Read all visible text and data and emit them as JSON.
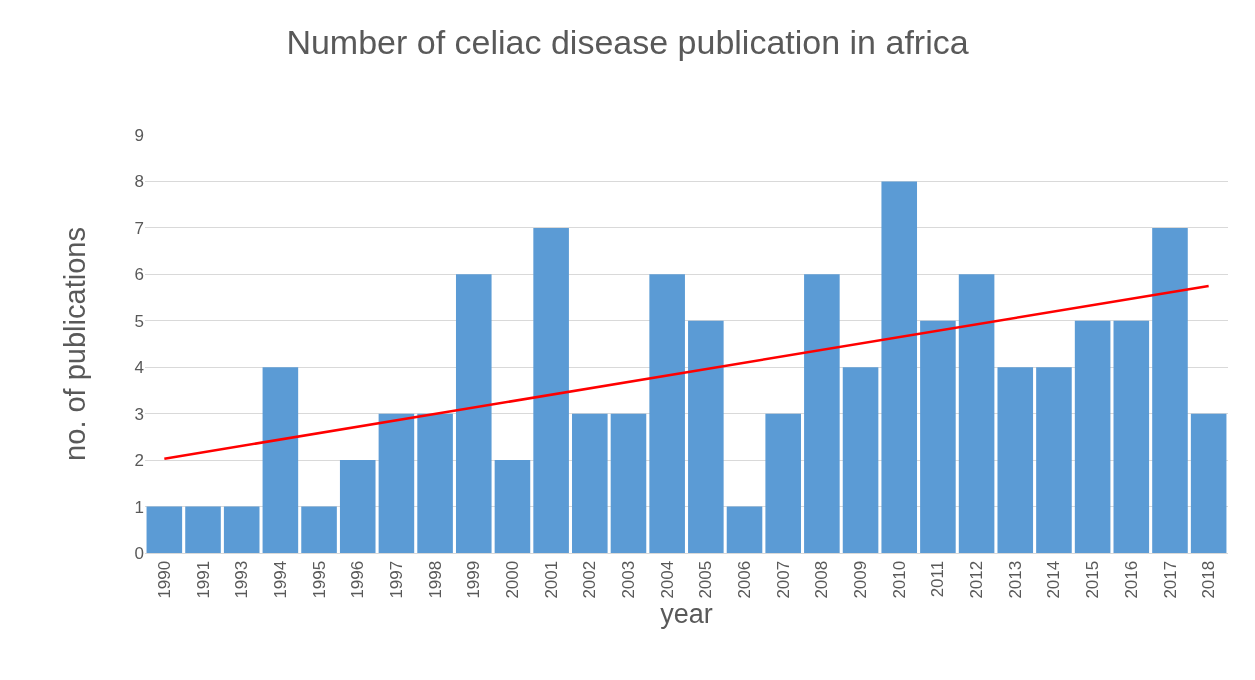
{
  "chart_data": {
    "type": "bar",
    "title": "Number of celiac disease publication in africa",
    "xlabel": "year",
    "ylabel": "no. of publications",
    "categories": [
      "1990",
      "1991",
      "1993",
      "1994",
      "1995",
      "1996",
      "1997",
      "1998",
      "1999",
      "2000",
      "2001",
      "2002",
      "2003",
      "2004",
      "2005",
      "2006",
      "2007",
      "2008",
      "2009",
      "2010",
      "2011",
      "2012",
      "2013",
      "2014",
      "2015",
      "2016",
      "2017",
      "2018"
    ],
    "series": [
      {
        "color": "#5b9bd5",
        "values": [
          1,
          1,
          1,
          4,
          1,
          2,
          3,
          3,
          6,
          2,
          7,
          3,
          3,
          6,
          5,
          1,
          3,
          6,
          4,
          8,
          5,
          6,
          4,
          4,
          5,
          5,
          7,
          3
        ]
      },
      {
        "type": "line",
        "color": "#ff0000",
        "values": [
          2.03,
          null,
          null,
          null,
          null,
          null,
          null,
          null,
          null,
          null,
          null,
          null,
          null,
          null,
          null,
          null,
          null,
          null,
          null,
          null,
          null,
          null,
          null,
          null,
          null,
          null,
          null,
          5.75
        ]
      }
    ],
    "ylim": [
      0,
      9
    ],
    "yticks": [
      0,
      1,
      2,
      3,
      4,
      5,
      6,
      7,
      8,
      9
    ],
    "grid": "y"
  }
}
